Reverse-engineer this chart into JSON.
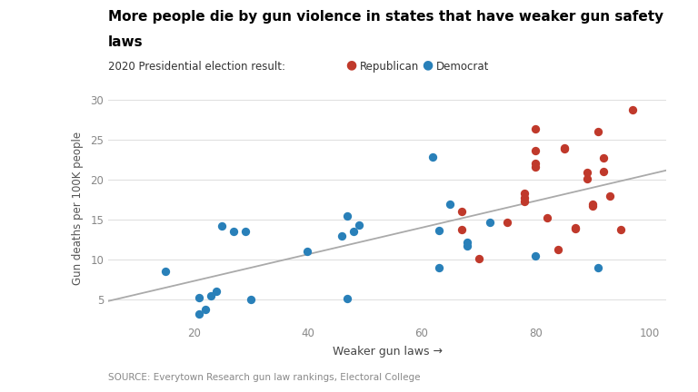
{
  "title_line1": "More people die by gun violence in states that have weaker gun safety",
  "title_line2": "laws",
  "subtitle": "2020 Presidential election result:",
  "xlabel": "Weaker gun laws →",
  "ylabel": "Gun deaths per 100K people",
  "source": "SOURCE: Everytown Research gun law rankings, Electoral College",
  "xlim": [
    5,
    103
  ],
  "ylim": [
    2,
    31
  ],
  "xticks": [
    20,
    40,
    60,
    80,
    100
  ],
  "yticks": [
    5,
    10,
    15,
    20,
    25,
    30
  ],
  "republican_color": "#c0392b",
  "democrat_color": "#2980b9",
  "trendline_color": "#aaaaaa",
  "republican_points": [
    [
      67,
      13.8
    ],
    [
      67,
      16.0
    ],
    [
      70,
      10.1
    ],
    [
      75,
      14.7
    ],
    [
      78,
      17.3
    ],
    [
      78,
      17.8
    ],
    [
      78,
      18.3
    ],
    [
      80,
      26.4
    ],
    [
      80,
      22.1
    ],
    [
      80,
      21.6
    ],
    [
      80,
      23.7
    ],
    [
      82,
      15.2
    ],
    [
      84,
      11.3
    ],
    [
      85,
      23.9
    ],
    [
      85,
      24.0
    ],
    [
      87,
      13.9
    ],
    [
      87,
      14.0
    ],
    [
      89,
      20.1
    ],
    [
      89,
      20.9
    ],
    [
      90,
      16.7
    ],
    [
      90,
      17.0
    ],
    [
      91,
      26.0
    ],
    [
      92,
      21.0
    ],
    [
      92,
      22.7
    ],
    [
      93,
      18.0
    ],
    [
      95,
      13.8
    ],
    [
      97,
      28.8
    ]
  ],
  "democrat_points": [
    [
      15,
      8.5
    ],
    [
      21,
      3.2
    ],
    [
      21,
      5.2
    ],
    [
      22,
      3.7
    ],
    [
      23,
      5.5
    ],
    [
      24,
      6.0
    ],
    [
      25,
      14.2
    ],
    [
      27,
      13.5
    ],
    [
      29,
      13.5
    ],
    [
      30,
      5.0
    ],
    [
      40,
      11.0
    ],
    [
      46,
      13.0
    ],
    [
      47,
      15.5
    ],
    [
      48,
      13.5
    ],
    [
      49,
      14.3
    ],
    [
      47,
      5.1
    ],
    [
      62,
      22.9
    ],
    [
      63,
      13.6
    ],
    [
      63,
      9.0
    ],
    [
      65,
      17.0
    ],
    [
      68,
      11.7
    ],
    [
      68,
      12.2
    ],
    [
      72,
      14.7
    ],
    [
      80,
      10.5
    ],
    [
      91,
      9.0
    ]
  ],
  "trendline_x": [
    5,
    103
  ],
  "trendline_y": [
    4.8,
    21.2
  ]
}
